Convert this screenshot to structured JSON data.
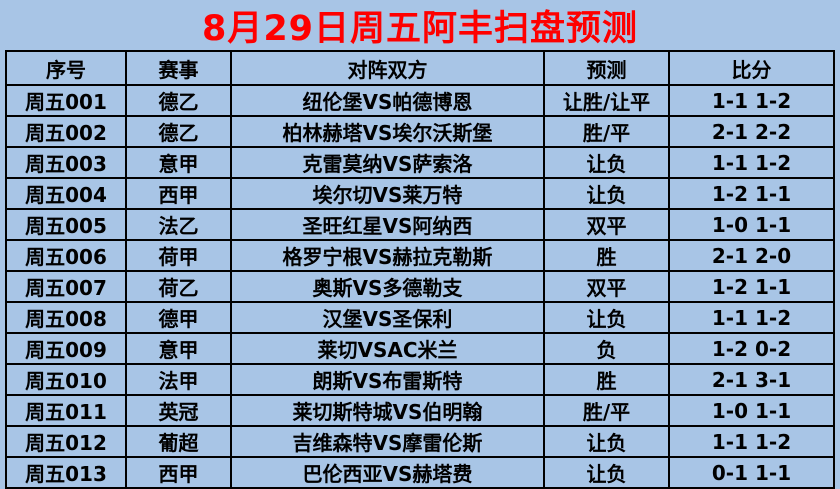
{
  "title": "8月29日周五阿丰扫盘预测",
  "colors": {
    "background": "#a8c5e6",
    "title_text": "#fe0000",
    "table_border": "#000000",
    "cell_text": "#000000"
  },
  "table": {
    "headers": [
      "序号",
      "赛事",
      "对阵双方",
      "预测",
      "比分"
    ],
    "rows": [
      [
        "周五001",
        "德乙",
        "纽伦堡VS帕德博恩",
        "让胜/让平",
        "1-1 1-2"
      ],
      [
        "周五002",
        "德乙",
        "柏林赫塔VS埃尔沃斯堡",
        "胜/平",
        "2-1 2-2"
      ],
      [
        "周五003",
        "意甲",
        "克雷莫纳VS萨索洛",
        "让负",
        "1-1 1-2"
      ],
      [
        "周五004",
        "西甲",
        "埃尔切VS莱万特",
        "让负",
        "1-2 1-1"
      ],
      [
        "周五005",
        "法乙",
        "圣旺红星VS阿纳西",
        "双平",
        "1-0 1-1"
      ],
      [
        "周五006",
        "荷甲",
        "格罗宁根VS赫拉克勒斯",
        "胜",
        "2-1 2-0"
      ],
      [
        "周五007",
        "荷乙",
        "奥斯VS多德勒支",
        "双平",
        "1-2 1-1"
      ],
      [
        "周五008",
        "德甲",
        "汉堡VS圣保利",
        "让负",
        "1-1 1-2"
      ],
      [
        "周五009",
        "意甲",
        "莱切VSAC米兰",
        "负",
        "1-2 0-2"
      ],
      [
        "周五010",
        "法甲",
        "朗斯VS布雷斯特",
        "胜",
        "2-1 3-1"
      ],
      [
        "周五011",
        "英冠",
        "莱切斯特城VS伯明翰",
        "胜/平",
        "1-0 1-1"
      ],
      [
        "周五012",
        "葡超",
        "吉维森特VS摩雷伦斯",
        "让负",
        "1-1 1-2"
      ],
      [
        "周五013",
        "西甲",
        "巴伦西亚VS赫塔费",
        "让负",
        "0-1 1-1"
      ]
    ]
  }
}
